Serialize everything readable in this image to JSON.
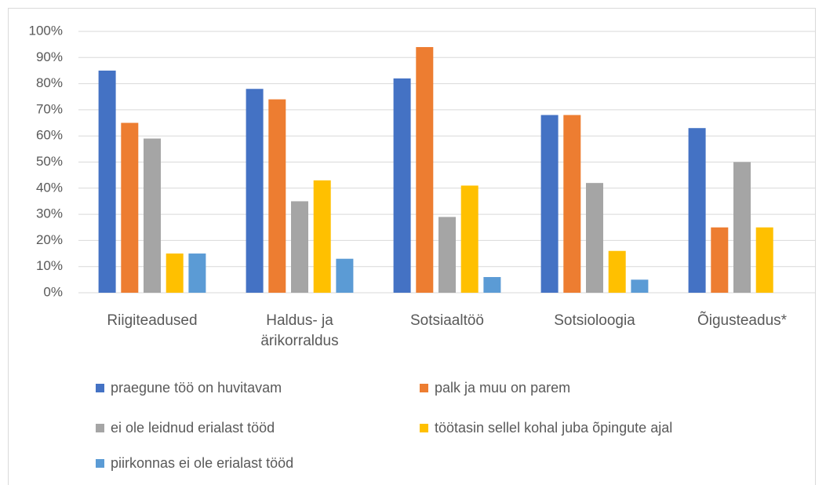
{
  "chart_data": {
    "type": "bar",
    "categories": [
      "Riigiteadused",
      "Haldus- ja ärikorraldus",
      "Sotsiaaltöö",
      "Sotsioloogia",
      "Õigusteadus*"
    ],
    "series": [
      {
        "name": "praegune töö on huvitavam",
        "color": "#4472c4",
        "values": [
          85,
          78,
          82,
          68,
          63
        ]
      },
      {
        "name": "palk ja muu on parem",
        "color": "#ed7d31",
        "values": [
          65,
          74,
          94,
          68,
          25
        ]
      },
      {
        "name": "ei ole leidnud erialast tööd",
        "color": "#a5a5a5",
        "values": [
          59,
          35,
          29,
          42,
          50
        ]
      },
      {
        "name": "töötasin sellel kohal juba õpingute ajal",
        "color": "#ffc000",
        "values": [
          15,
          43,
          41,
          16,
          25
        ]
      },
      {
        "name": "piirkonnas ei ole erialast tööd",
        "color": "#5b9bd5",
        "values": [
          15,
          13,
          6,
          5,
          0
        ]
      }
    ],
    "ylim": [
      0,
      100
    ],
    "yticks": [
      {
        "value": 0,
        "label": "0%"
      },
      {
        "value": 10,
        "label": "10%"
      },
      {
        "value": 20,
        "label": "20%"
      },
      {
        "value": 30,
        "label": "30%"
      },
      {
        "value": 40,
        "label": "40%"
      },
      {
        "value": 50,
        "label": "50%"
      },
      {
        "value": 60,
        "label": "60%"
      },
      {
        "value": 70,
        "label": "70%"
      },
      {
        "value": 80,
        "label": "80%"
      },
      {
        "value": 90,
        "label": "90%"
      },
      {
        "value": 100,
        "label": "100%"
      }
    ],
    "grid": true,
    "legend": "bottom"
  }
}
